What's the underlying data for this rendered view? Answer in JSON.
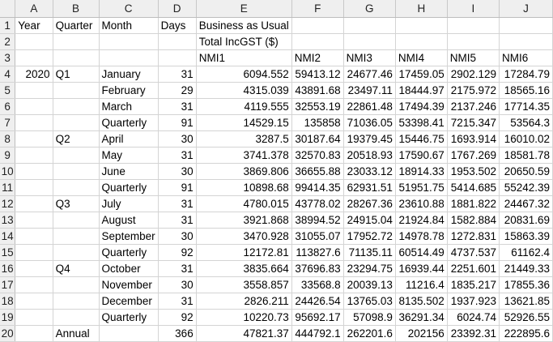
{
  "columns": [
    "A",
    "B",
    "C",
    "D",
    "E",
    "F",
    "G",
    "H",
    "I",
    "J"
  ],
  "rows": [
    {
      "n": "1",
      "cells": [
        "Year",
        "Quarter",
        "Month",
        "Days",
        "Business as Usual",
        "",
        "",
        "",
        "",
        ""
      ]
    },
    {
      "n": "2",
      "cells": [
        "",
        "",
        "",
        "",
        "Total IncGST ($)",
        "",
        "",
        "",
        "",
        ""
      ]
    },
    {
      "n": "3",
      "cells": [
        "",
        "",
        "",
        "",
        "NMI1",
        "NMI2",
        "NMI3",
        "NMI4",
        "NMI5",
        "NMI6"
      ]
    },
    {
      "n": "4",
      "cells": [
        "2020",
        "Q1",
        "January",
        "31",
        "6094.552",
        "59413.12",
        "24677.46",
        "17459.05",
        "2902.129",
        "17284.79"
      ]
    },
    {
      "n": "5",
      "cells": [
        "",
        "",
        "February",
        "29",
        "4315.039",
        "43891.68",
        "23497.11",
        "18444.97",
        "2175.972",
        "18565.16"
      ]
    },
    {
      "n": "6",
      "cells": [
        "",
        "",
        "March",
        "31",
        "4119.555",
        "32553.19",
        "22861.48",
        "17494.39",
        "2137.246",
        "17714.35"
      ]
    },
    {
      "n": "7",
      "cells": [
        "",
        "",
        "Quarterly",
        "91",
        "14529.15",
        "135858",
        "71036.05",
        "53398.41",
        "7215.347",
        "53564.3"
      ]
    },
    {
      "n": "8",
      "cells": [
        "",
        "Q2",
        "April",
        "30",
        "3287.5",
        "30187.64",
        "19379.45",
        "15446.75",
        "1693.914",
        "16010.02"
      ]
    },
    {
      "n": "9",
      "cells": [
        "",
        "",
        "May",
        "31",
        "3741.378",
        "32570.83",
        "20518.93",
        "17590.67",
        "1767.269",
        "18581.78"
      ]
    },
    {
      "n": "10",
      "cells": [
        "",
        "",
        "June",
        "30",
        "3869.806",
        "36655.88",
        "23033.12",
        "18914.33",
        "1953.502",
        "20650.59"
      ]
    },
    {
      "n": "11",
      "cells": [
        "",
        "",
        "Quarterly",
        "91",
        "10898.68",
        "99414.35",
        "62931.51",
        "51951.75",
        "5414.685",
        "55242.39"
      ]
    },
    {
      "n": "12",
      "cells": [
        "",
        "Q3",
        "July",
        "31",
        "4780.015",
        "43778.02",
        "28267.36",
        "23610.88",
        "1881.822",
        "24467.32"
      ]
    },
    {
      "n": "13",
      "cells": [
        "",
        "",
        "August",
        "31",
        "3921.868",
        "38994.52",
        "24915.04",
        "21924.84",
        "1582.884",
        "20831.69"
      ]
    },
    {
      "n": "14",
      "cells": [
        "",
        "",
        "September",
        "30",
        "3470.928",
        "31055.07",
        "17952.72",
        "14978.78",
        "1272.831",
        "15863.39"
      ]
    },
    {
      "n": "15",
      "cells": [
        "",
        "",
        "Quarterly",
        "92",
        "12172.81",
        "113827.6",
        "71135.11",
        "60514.49",
        "4737.537",
        "61162.4"
      ]
    },
    {
      "n": "16",
      "cells": [
        "",
        "Q4",
        "October",
        "31",
        "3835.664",
        "37696.83",
        "23294.75",
        "16939.44",
        "2251.601",
        "21449.33"
      ]
    },
    {
      "n": "17",
      "cells": [
        "",
        "",
        "November",
        "30",
        "3558.857",
        "33568.8",
        "20039.13",
        "11216.4",
        "1835.217",
        "17855.36"
      ]
    },
    {
      "n": "18",
      "cells": [
        "",
        "",
        "December",
        "31",
        "2826.211",
        "24426.54",
        "13765.03",
        "8135.502",
        "1937.923",
        "13621.85"
      ]
    },
    {
      "n": "19",
      "cells": [
        "",
        "",
        "Quarterly",
        "92",
        "10220.73",
        "95692.17",
        "57098.9",
        "36291.34",
        "6024.74",
        "52926.55"
      ]
    },
    {
      "n": "20",
      "cells": [
        "",
        "Annual",
        "",
        "366",
        "47821.37",
        "444792.1",
        "262201.6",
        "202156",
        "23392.31",
        "222895.6"
      ]
    }
  ]
}
